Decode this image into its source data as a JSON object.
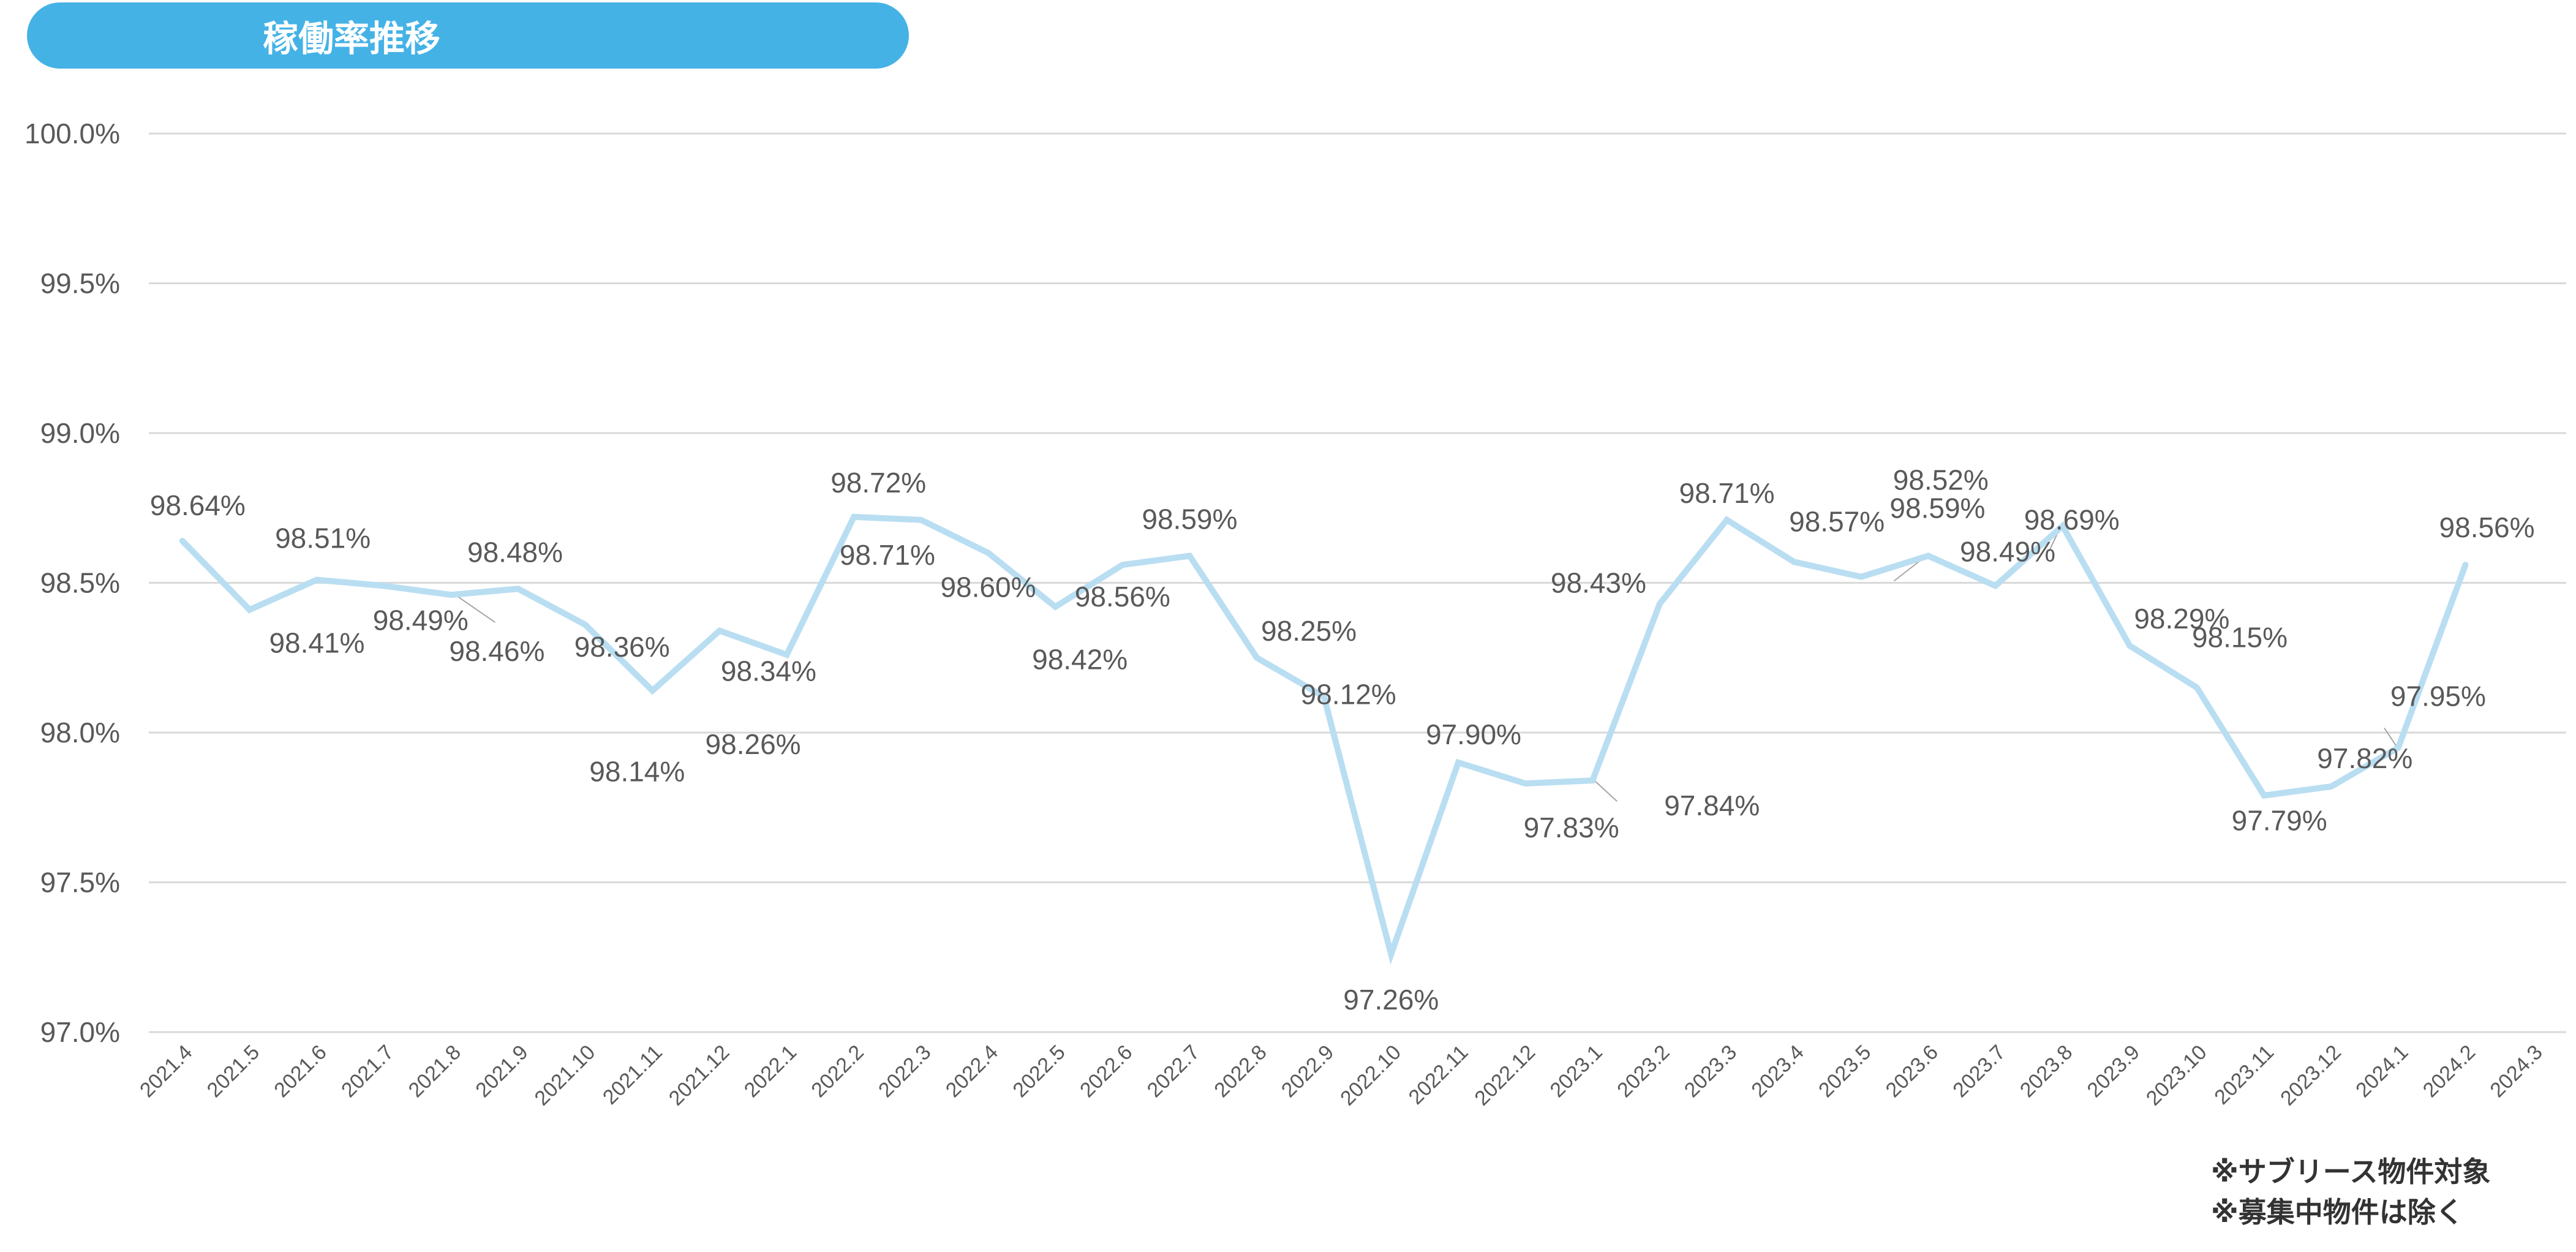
{
  "title": "稼働率推移",
  "notes": [
    "※サブリース物件対象",
    "※募集中物件は除く"
  ],
  "colors": {
    "title_bg": "#45b2e6",
    "line": "#b9def2",
    "grid": "#d9d9d9",
    "text": "#595959"
  },
  "chart_data": {
    "type": "line",
    "title": "稼働率推移",
    "xlabel": "",
    "ylabel": "",
    "ylim": [
      97.0,
      100.0
    ],
    "yticks": [
      "97.0%",
      "97.5%",
      "98.0%",
      "98.5%",
      "99.0%",
      "99.5%",
      "100.0%"
    ],
    "yticks_values": [
      97.0,
      97.5,
      98.0,
      98.5,
      99.0,
      99.5,
      100.0
    ],
    "grid": true,
    "legend": "none",
    "categories": [
      "2021.4",
      "2021.5",
      "2021.6",
      "2021.7",
      "2021.8",
      "2021.9",
      "2021.10",
      "2021.11",
      "2021.12",
      "2022.1",
      "2022.2",
      "2022.3",
      "2022.4",
      "2022.5",
      "2022.6",
      "2022.7",
      "2022.8",
      "2022.9",
      "2022.10",
      "2022.11",
      "2022.12",
      "2023.1",
      "2023.2",
      "2023.3",
      "2023.4",
      "2023.5",
      "2023.6",
      "2023.7",
      "2023.8",
      "2023.9",
      "2023.10",
      "2023.11",
      "2023.12",
      "2024.1",
      "2024.2",
      "2024.3"
    ],
    "values": [
      98.64,
      98.41,
      98.51,
      98.49,
      98.46,
      98.48,
      98.36,
      98.14,
      98.34,
      98.26,
      98.72,
      98.71,
      98.6,
      98.42,
      98.56,
      98.59,
      98.25,
      98.12,
      97.26,
      97.9,
      97.83,
      97.84,
      98.43,
      98.71,
      98.57,
      98.52,
      98.59,
      98.49,
      98.69,
      98.29,
      98.15,
      97.79,
      97.82,
      97.95,
      98.56,
      null
    ],
    "data_labels": [
      "98.64%",
      "98.41%",
      "98.51%",
      "98.49%",
      "98.46%",
      "98.48%",
      "98.36%",
      "98.14%",
      "98.34%",
      "98.26%",
      "98.72%",
      "98.71%",
      "98.60%",
      "98.42%",
      "98.56%",
      "98.59%",
      "98.25%",
      "98.12%",
      "97.26%",
      "97.90%",
      "97.83%",
      "97.84%",
      "98.43%",
      "98.71%",
      "98.57%",
      "98.52%",
      "98.59%",
      "98.49%",
      "98.69%",
      "98.29%",
      "98.15%",
      "97.79%",
      "97.82%",
      "97.95%",
      "98.56%",
      ""
    ]
  }
}
